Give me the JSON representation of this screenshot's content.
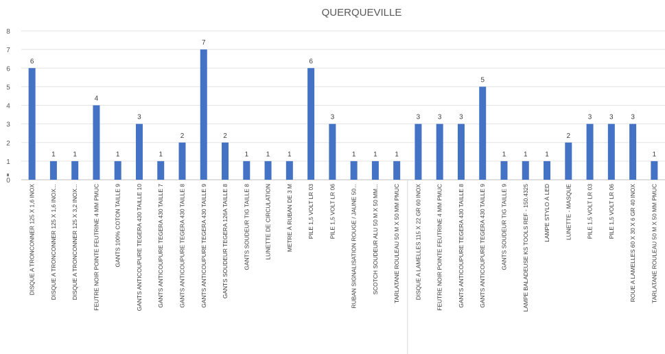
{
  "chart_data": {
    "type": "bar",
    "title": "QUERQUEVILLE",
    "xlabel": "",
    "ylabel": "",
    "ylim": [
      0,
      8
    ],
    "yticks": [
      0,
      1,
      2,
      3,
      4,
      5,
      6,
      7,
      8
    ],
    "grid": true,
    "legend": "none",
    "bar_color": "#4472C4",
    "categories": [
      "DISQUE A TRONCONNER 125 X 1,6 INOX",
      "DISQUE A TRONCONNER 125 X 1,6 INOX...",
      "DISQUE A TRONCONNER 125 X 3,2 INOX...",
      "FEUTRE NOIR POINTE FEUTRINE 4 MM PMUC",
      "GANTS 100% COTON TAILLE 9",
      "GANTS ANTICOUPURE TEGERA 430 TAILLE 10",
      "GANTS ANTICOUPURE TEGERA 430 TAILLE 7",
      "GANTS ANTICOUPURE TEGERA 430 TAILLE 8",
      "GANTS ANTICOUPURE TEGERA 430 TAILLE 9",
      "GANTS SOUDEUR TEGERA 126A TAILLE 8",
      "GANTS SOUDEUR TIG TAILLE 8",
      "LUNETTE DE CIRCULATION",
      "METRE À RUBAN DE 3 M",
      "PILE 1,5 VOLT LR 03",
      "PILE 1,5 VOLT LR 06",
      "RUBAN SIGNALISATION ROUGE / JAUNE 50...",
      "SCOTCH SOUDEUR ALU 50 M X 50 MM...",
      "TARLATANE ROULEAU 50 M X 50 MM PMUC",
      "DISQUE A LAMELLES 115 X 22 GR 60 INOX",
      "FEUTRE NOIR POINTE FEUTRINE 4 MM PMUC",
      "GANTS ANTICOUPURE TEGERA 430 TAILLE 8",
      "GANTS ANTICOUPURE TEGERA 430 TAILLE 9",
      "GANTS SOUDEUR TIG TAILLE 9",
      "LAMPE BALADEUSE KS TOOLS REF - 150.4325",
      "LAMPE STYLO À LED",
      "LUNETTE - MASQUE",
      "PILE 1,5 VOLT LR 03",
      "PILE 1,5 VOLT LR 06",
      "ROUE A LAMELLES 60 X 30 X 6 GR 40 INOX",
      "TARLATANE ROULEAU 50 M X 50 MM PMUC"
    ],
    "values": [
      6,
      1,
      1,
      4,
      1,
      3,
      1,
      2,
      7,
      2,
      1,
      1,
      1,
      6,
      3,
      1,
      1,
      1,
      3,
      3,
      3,
      5,
      1,
      1,
      1,
      2,
      3,
      3,
      3,
      1
    ]
  }
}
